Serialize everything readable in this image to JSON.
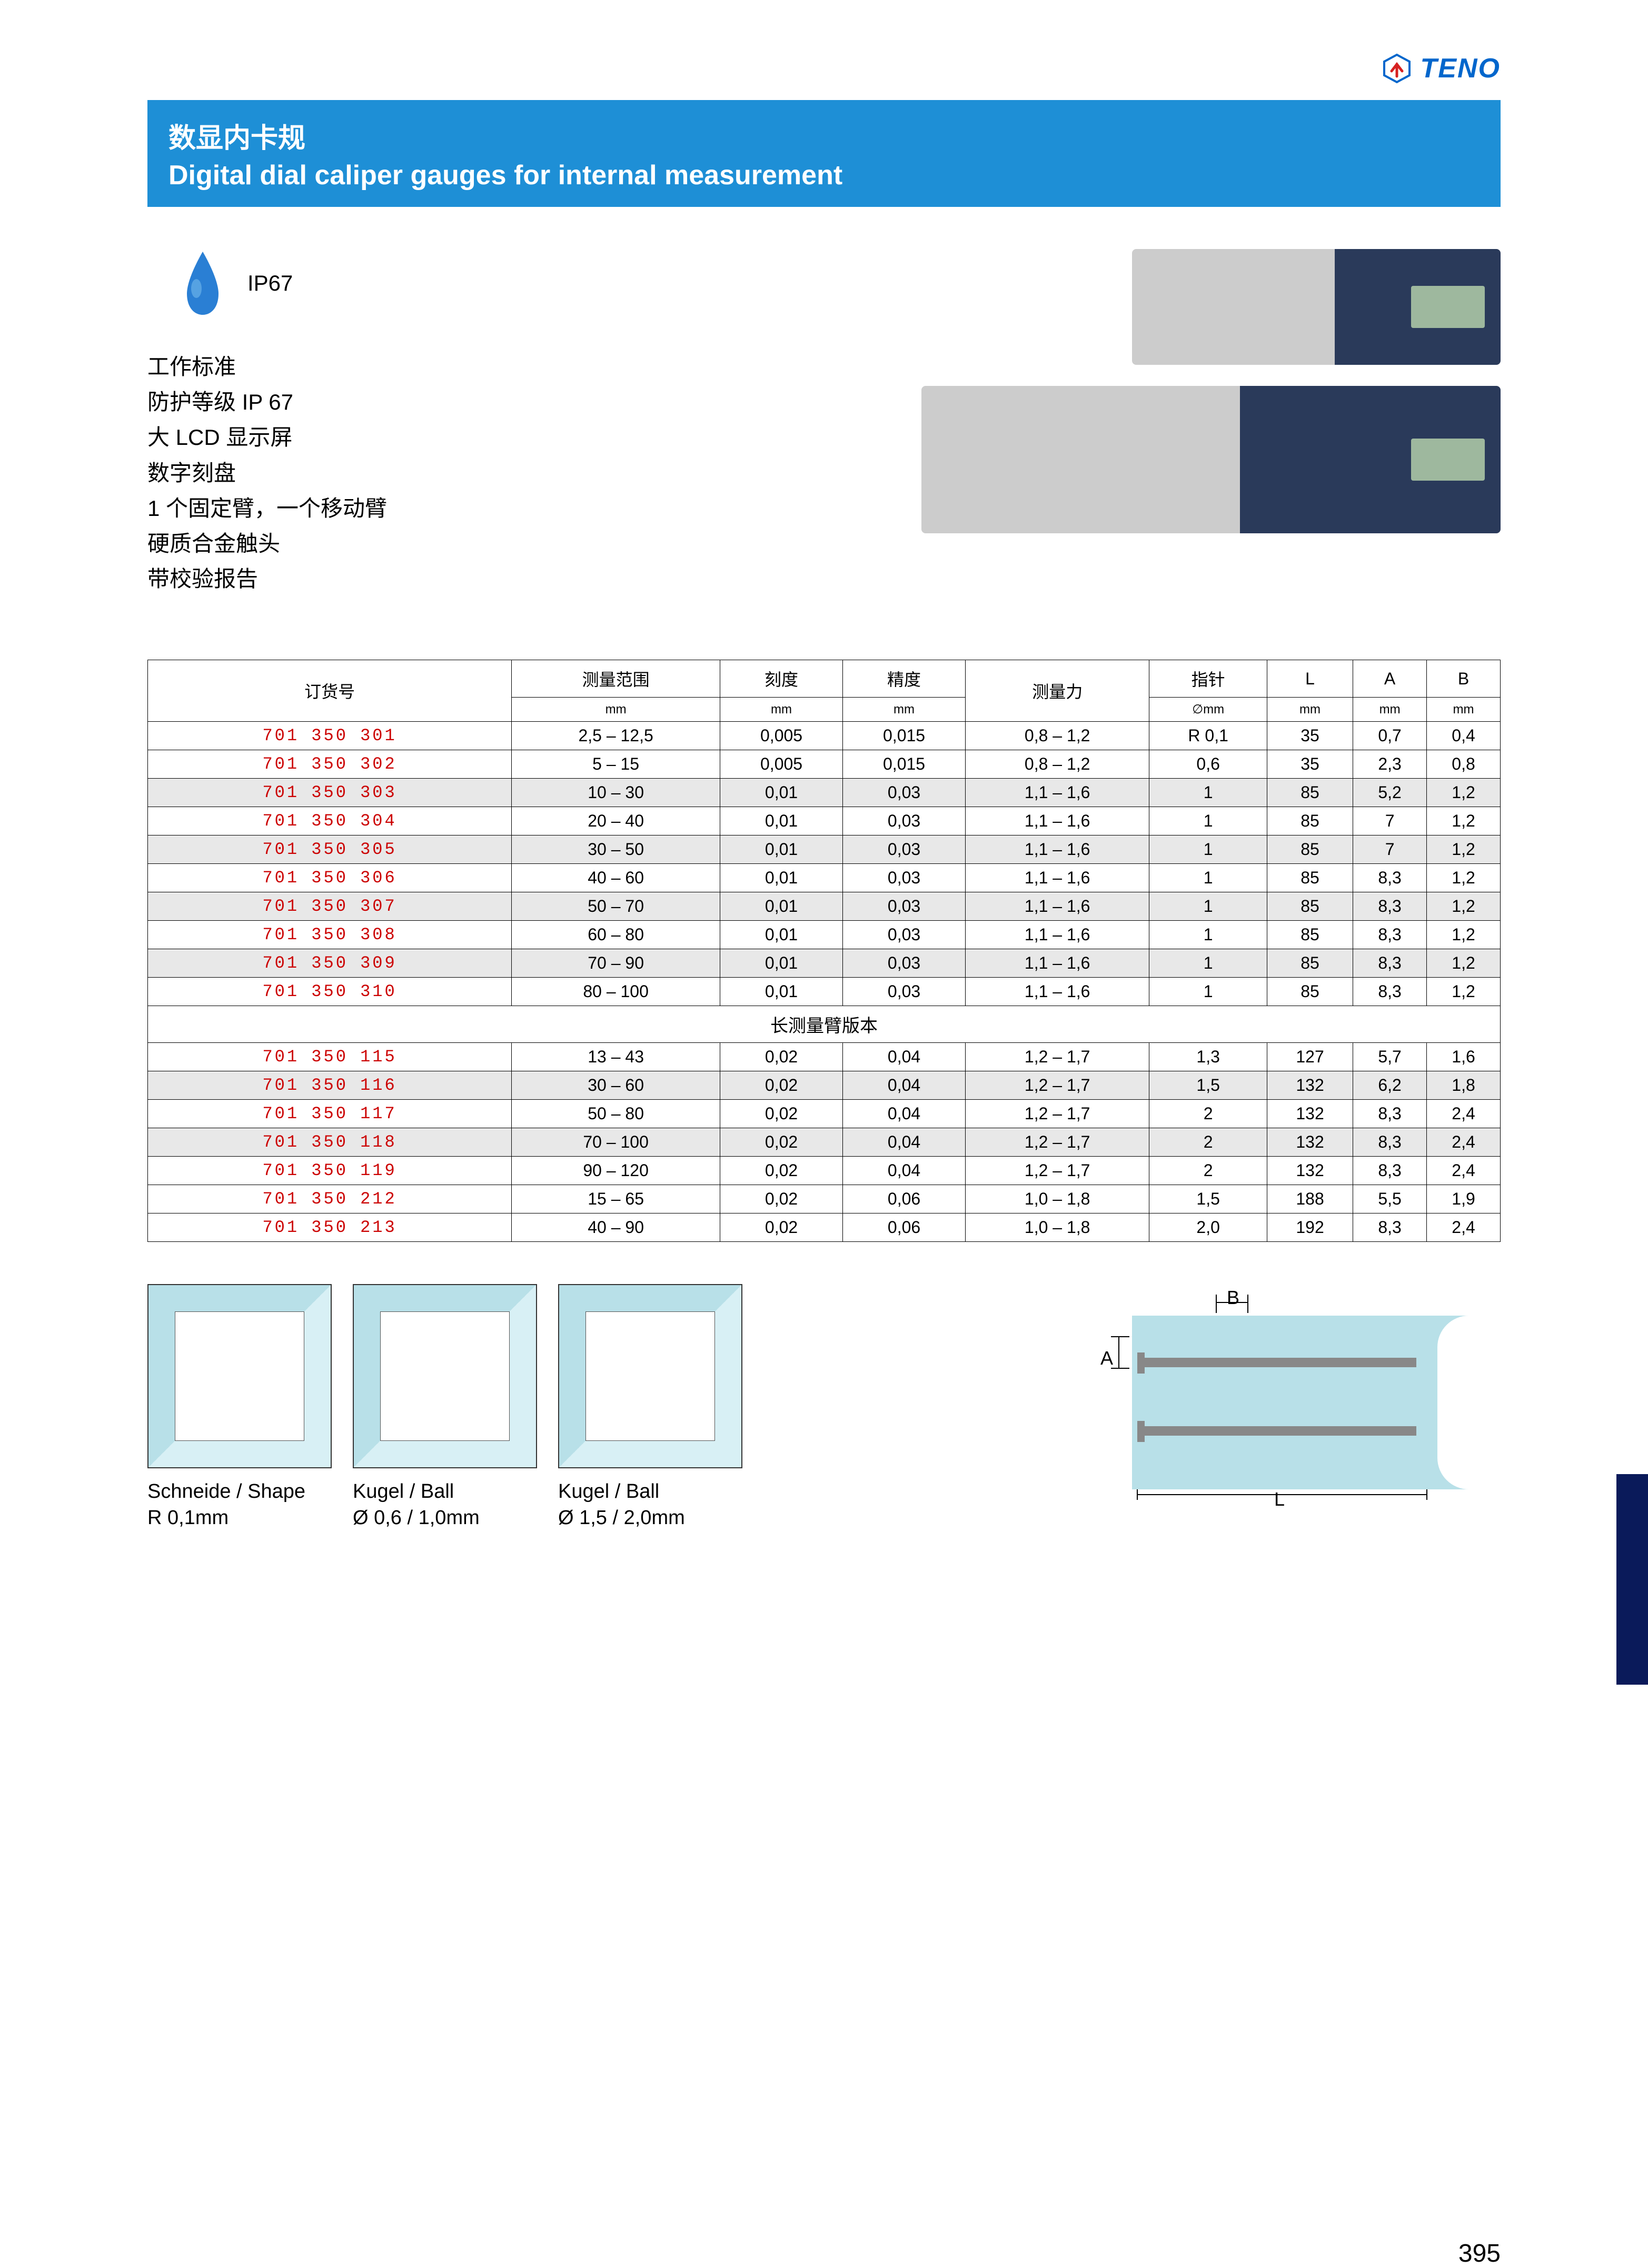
{
  "brand": "TENO",
  "title": {
    "cn": "数显内卡规",
    "en": "Digital dial caliper gauges for internal measurement"
  },
  "ip_label": "IP67",
  "specs": [
    "工作标准",
    "防护等级 IP 67",
    "大 LCD 显示屏",
    "数字刻盘",
    "1 个固定臂，一个移动臂",
    "硬质合金触头",
    "带校验报告"
  ],
  "table": {
    "headers": [
      {
        "main": "订货号",
        "sub": ""
      },
      {
        "main": "测量范围",
        "sub": "mm"
      },
      {
        "main": "刻度",
        "sub": "mm"
      },
      {
        "main": "精度",
        "sub": "mm"
      },
      {
        "main": "测量力",
        "sub": ""
      },
      {
        "main": "指针",
        "sub": "∅mm"
      },
      {
        "main": "L",
        "sub": "mm"
      },
      {
        "main": "A",
        "sub": "mm"
      },
      {
        "main": "B",
        "sub": "mm"
      }
    ],
    "rows": [
      {
        "no": "701 350 301",
        "range": "2,5 – 12,5",
        "div": "0,005",
        "acc": "0,015",
        "force": "0,8 – 1,2",
        "tip": "R 0,1",
        "l": "35",
        "a": "0,7",
        "b": "0,4",
        "gray": false
      },
      {
        "no": "701 350 302",
        "range": "5 – 15",
        "div": "0,005",
        "acc": "0,015",
        "force": "0,8 – 1,2",
        "tip": "0,6",
        "l": "35",
        "a": "2,3",
        "b": "0,8",
        "gray": false
      },
      {
        "no": "701 350 303",
        "range": "10 – 30",
        "div": "0,01",
        "acc": "0,03",
        "force": "1,1 – 1,6",
        "tip": "1",
        "l": "85",
        "a": "5,2",
        "b": "1,2",
        "gray": true
      },
      {
        "no": "701 350 304",
        "range": "20 – 40",
        "div": "0,01",
        "acc": "0,03",
        "force": "1,1 – 1,6",
        "tip": "1",
        "l": "85",
        "a": "7",
        "b": "1,2",
        "gray": false
      },
      {
        "no": "701 350 305",
        "range": "30 – 50",
        "div": "0,01",
        "acc": "0,03",
        "force": "1,1 – 1,6",
        "tip": "1",
        "l": "85",
        "a": "7",
        "b": "1,2",
        "gray": true
      },
      {
        "no": "701 350 306",
        "range": "40 – 60",
        "div": "0,01",
        "acc": "0,03",
        "force": "1,1 – 1,6",
        "tip": "1",
        "l": "85",
        "a": "8,3",
        "b": "1,2",
        "gray": false
      },
      {
        "no": "701 350 307",
        "range": "50 – 70",
        "div": "0,01",
        "acc": "0,03",
        "force": "1,1 – 1,6",
        "tip": "1",
        "l": "85",
        "a": "8,3",
        "b": "1,2",
        "gray": true
      },
      {
        "no": "701 350 308",
        "range": "60 – 80",
        "div": "0,01",
        "acc": "0,03",
        "force": "1,1 – 1,6",
        "tip": "1",
        "l": "85",
        "a": "8,3",
        "b": "1,2",
        "gray": false
      },
      {
        "no": "701 350 309",
        "range": "70 – 90",
        "div": "0,01",
        "acc": "0,03",
        "force": "1,1 – 1,6",
        "tip": "1",
        "l": "85",
        "a": "8,3",
        "b": "1,2",
        "gray": true
      },
      {
        "no": "701 350 310",
        "range": "80 – 100",
        "div": "0,01",
        "acc": "0,03",
        "force": "1,1 – 1,6",
        "tip": "1",
        "l": "85",
        "a": "8,3",
        "b": "1,2",
        "gray": false
      }
    ],
    "section_label": "长测量臂版本",
    "rows2": [
      {
        "no": "701 350 115",
        "range": "13 – 43",
        "div": "0,02",
        "acc": "0,04",
        "force": "1,2 – 1,7",
        "tip": "1,3",
        "l": "127",
        "a": "5,7",
        "b": "1,6",
        "gray": false
      },
      {
        "no": "701 350 116",
        "range": "30 – 60",
        "div": "0,02",
        "acc": "0,04",
        "force": "1,2 – 1,7",
        "tip": "1,5",
        "l": "132",
        "a": "6,2",
        "b": "1,8",
        "gray": true
      },
      {
        "no": "701 350 117",
        "range": "50 – 80",
        "div": "0,02",
        "acc": "0,04",
        "force": "1,2 – 1,7",
        "tip": "2",
        "l": "132",
        "a": "8,3",
        "b": "2,4",
        "gray": false
      },
      {
        "no": "701 350 118",
        "range": "70 – 100",
        "div": "0,02",
        "acc": "0,04",
        "force": "1,2 – 1,7",
        "tip": "2",
        "l": "132",
        "a": "8,3",
        "b": "2,4",
        "gray": true
      },
      {
        "no": "701 350 119",
        "range": "90 – 120",
        "div": "0,02",
        "acc": "0,04",
        "force": "1,2 – 1,7",
        "tip": "2",
        "l": "132",
        "a": "8,3",
        "b": "2,4",
        "gray": false
      },
      {
        "no": "701 350 212",
        "range": "15 – 65",
        "div": "0,02",
        "acc": "0,06",
        "force": "1,0 – 1,8",
        "tip": "1,5",
        "l": "188",
        "a": "5,5",
        "b": "1,9",
        "gray": false
      },
      {
        "no": "701 350 213",
        "range": "40 – 90",
        "div": "0,02",
        "acc": "0,06",
        "force": "1,0 – 1,8",
        "tip": "2,0",
        "l": "192",
        "a": "8,3",
        "b": "2,4",
        "gray": false
      }
    ]
  },
  "diagrams": [
    {
      "title": "Schneide / Shape",
      "sub": "R 0,1mm"
    },
    {
      "title": "Kugel / Ball",
      "sub": "Ø 0,6 / 1,0mm"
    },
    {
      "title": "Kugel / Ball",
      "sub": "Ø 1,5 / 2,0mm"
    }
  ],
  "dim_labels": {
    "a": "A",
    "b": "B",
    "l": "L"
  },
  "page_number": "395",
  "colors": {
    "header_bg": "#1e8fd6",
    "brand": "#0066cc",
    "order": "#c00",
    "gray": "#e8e8e8",
    "cyan": "#b8e0e8",
    "sidetab": "#0a1a5a"
  }
}
